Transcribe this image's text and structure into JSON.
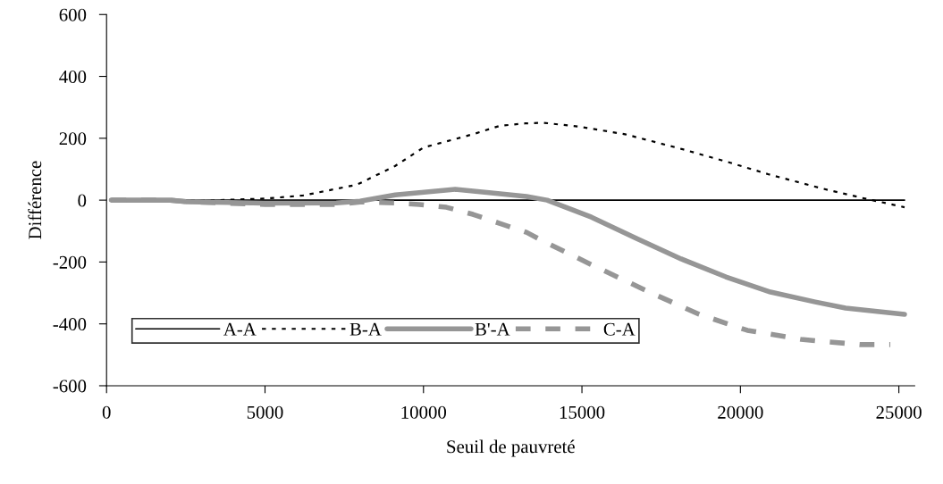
{
  "chart_data": {
    "type": "line",
    "xlabel": "Seuil de pauvreté",
    "ylabel": "Différence",
    "xlim": [
      0,
      25500
    ],
    "xticks": [
      0,
      5000,
      10000,
      15000,
      20000,
      25000
    ],
    "ylim": [
      -600,
      600
    ],
    "yticks": [
      -600,
      -400,
      -200,
      0,
      200,
      400,
      600
    ],
    "grid": false,
    "legend": "bottom left",
    "marker": "none",
    "series": [
      {
        "name": "A-A",
        "color": "#000000",
        "line_style": "solid",
        "x": [
          150,
          25180
        ],
        "values": [
          0,
          0
        ]
      },
      {
        "name": "B-A",
        "color": "#000000",
        "line_style": "dotted",
        "x": [
          150,
          2000,
          3500,
          5000,
          6200,
          7900,
          9100,
          10000,
          11560,
          12400,
          13200,
          13800,
          14950,
          16360,
          18050,
          19680,
          20870,
          22560,
          23890,
          25180
        ],
        "values": [
          0,
          0,
          0,
          5,
          15,
          50,
          110,
          170,
          213,
          240,
          248,
          250,
          237,
          213,
          168,
          121,
          84,
          38,
          6,
          -23
        ]
      },
      {
        "name": "B'-A",
        "color": "#969696",
        "line_style": "solid",
        "x": [
          150,
          2000,
          2500,
          5000,
          7250,
          8000,
          9110,
          11000,
          12000,
          13250,
          13900,
          15300,
          16720,
          18130,
          19540,
          20950,
          22360,
          23320,
          25180
        ],
        "values": [
          0,
          0,
          -5,
          -10,
          -9,
          -3,
          17,
          35,
          25,
          12,
          0,
          -55,
          -124,
          -190,
          -248,
          -297,
          -329,
          -349,
          -369
        ]
      },
      {
        "name": "C-A",
        "color": "#969696",
        "line_style": "dashed",
        "x": [
          150,
          2000,
          2500,
          5000,
          7250,
          8000,
          9110,
          9870,
          10720,
          11560,
          12400,
          13250,
          13900,
          15510,
          17120,
          18700,
          20220,
          21910,
          23770,
          24730
        ],
        "values": [
          0,
          0,
          -5,
          -14,
          -14,
          -6,
          -9,
          -14,
          -23,
          -46,
          -75,
          -104,
          -139,
          -219,
          -297,
          -369,
          -421,
          -450,
          -467,
          -467
        ]
      }
    ]
  }
}
